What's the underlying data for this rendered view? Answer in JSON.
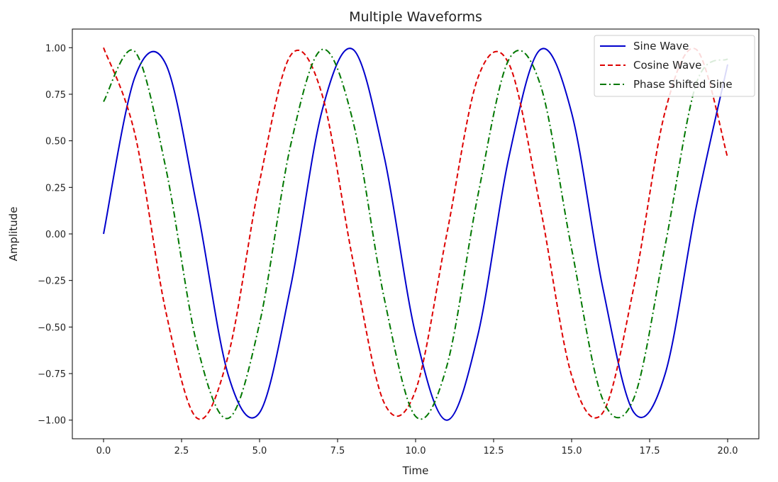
{
  "chart_data": {
    "type": "line",
    "title": "Multiple Waveforms",
    "xlabel": "Time",
    "ylabel": "Amplitude",
    "xlim": [
      -1.0,
      21.0
    ],
    "ylim": [
      -1.1,
      1.1
    ],
    "grid": false,
    "legend_placement": "top-right",
    "x_ticks": [
      0.0,
      2.5,
      5.0,
      7.5,
      10.0,
      12.5,
      15.0,
      17.5,
      20.0
    ],
    "x_tick_labels": [
      "0.0",
      "2.5",
      "5.0",
      "7.5",
      "10.0",
      "12.5",
      "15.0",
      "17.5",
      "20.0"
    ],
    "y_ticks": [
      1.0,
      0.75,
      0.5,
      0.25,
      0.0,
      -0.25,
      -0.5,
      -0.75,
      -1.0
    ],
    "y_tick_labels": [
      "1.00",
      "0.75",
      "0.50",
      "0.25",
      "0.00",
      "−0.25",
      "−0.50",
      "−0.75",
      "−1.00"
    ],
    "x": [
      0,
      1,
      2,
      3,
      4,
      5,
      6,
      7,
      8,
      9,
      10,
      11,
      12,
      13,
      14,
      15,
      16,
      17,
      18,
      19,
      20
    ],
    "series": [
      {
        "name": "Sine Wave",
        "color": "#0000cc",
        "dash": "solid",
        "values": [
          0.0,
          0.84,
          0.91,
          0.14,
          -0.76,
          -0.96,
          -0.28,
          0.66,
          0.99,
          0.41,
          -0.54,
          -1.0,
          -0.54,
          0.42,
          0.99,
          0.65,
          -0.29,
          -0.96,
          -0.75,
          0.15,
          0.91
        ]
      },
      {
        "name": "Cosine Wave",
        "color": "#dd0000",
        "dash": "dashed",
        "values": [
          1.0,
          0.54,
          -0.42,
          -0.99,
          -0.65,
          0.28,
          0.96,
          0.75,
          -0.15,
          -0.91,
          -0.84,
          0.0,
          0.84,
          0.91,
          0.14,
          -0.76,
          -0.96,
          -0.28,
          0.66,
          0.99,
          0.41
        ]
      },
      {
        "name": "Phase Shifted Sine",
        "color": "#007700",
        "dash": "dashdot",
        "values": [
          0.71,
          0.98,
          0.35,
          -0.6,
          -0.99,
          -0.48,
          0.48,
          0.99,
          0.6,
          -0.35,
          -0.98,
          -0.71,
          0.21,
          0.94,
          0.8,
          -0.08,
          -0.89,
          -0.88,
          -0.06,
          0.81,
          0.94
        ]
      }
    ]
  }
}
